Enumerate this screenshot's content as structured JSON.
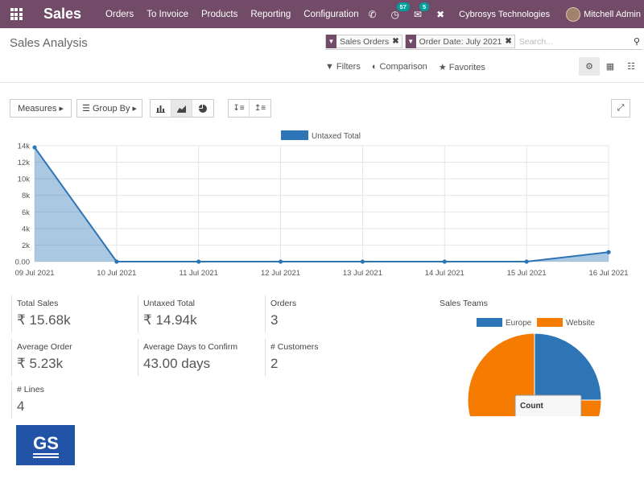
{
  "topbar": {
    "app_name": "Sales",
    "menu": [
      "Orders",
      "To Invoice",
      "Products",
      "Reporting",
      "Configuration"
    ],
    "activity_count": "57",
    "message_count": "5",
    "company": "Cybrosys Technologies",
    "user": "Mitchell Admin"
  },
  "control_panel": {
    "title": "Sales Analysis",
    "facets": [
      "Sales Orders",
      "Order Date: July 2021"
    ],
    "search_placeholder": "Search...",
    "filters_label": "Filters",
    "comparison_label": "Comparison",
    "favorites_label": "Favorites"
  },
  "toolbar": {
    "measures_label": "Measures",
    "groupby_label": "Group By"
  },
  "chart_data": {
    "type": "area",
    "legend": [
      "Untaxed Total"
    ],
    "categories": [
      "09 Jul 2021",
      "10 Jul 2021",
      "11 Jul 2021",
      "12 Jul 2021",
      "13 Jul 2021",
      "14 Jul 2021",
      "15 Jul 2021",
      "16 Jul 2021"
    ],
    "series": [
      {
        "name": "Untaxed Total",
        "values": [
          13800,
          0,
          0,
          0,
          0,
          0,
          0,
          1140
        ]
      }
    ],
    "y_ticks": [
      "0.00",
      "2k",
      "4k",
      "6k",
      "8k",
      "10k",
      "12k",
      "14k"
    ],
    "ylim": [
      0,
      14000
    ],
    "color": "#2e75b6"
  },
  "kpis": [
    {
      "label": "Total Sales",
      "value": "₹ 15.68k"
    },
    {
      "label": "Untaxed Total",
      "value": "₹ 14.94k"
    },
    {
      "label": "Orders",
      "value": "3"
    },
    {
      "label": "Average Order",
      "value": "₹ 5.23k"
    },
    {
      "label": "Average Days to Confirm",
      "value": "43.00 days"
    },
    {
      "label": "# Customers",
      "value": "2"
    },
    {
      "label": "# Lines",
      "value": "4"
    }
  ],
  "sales_teams": {
    "title": "Sales Teams",
    "legend": [
      "Europe",
      "Website"
    ],
    "colors": [
      "#2e75b6",
      "#f57c00"
    ],
    "tooltip_title": "Count"
  },
  "logo_text": "GS"
}
